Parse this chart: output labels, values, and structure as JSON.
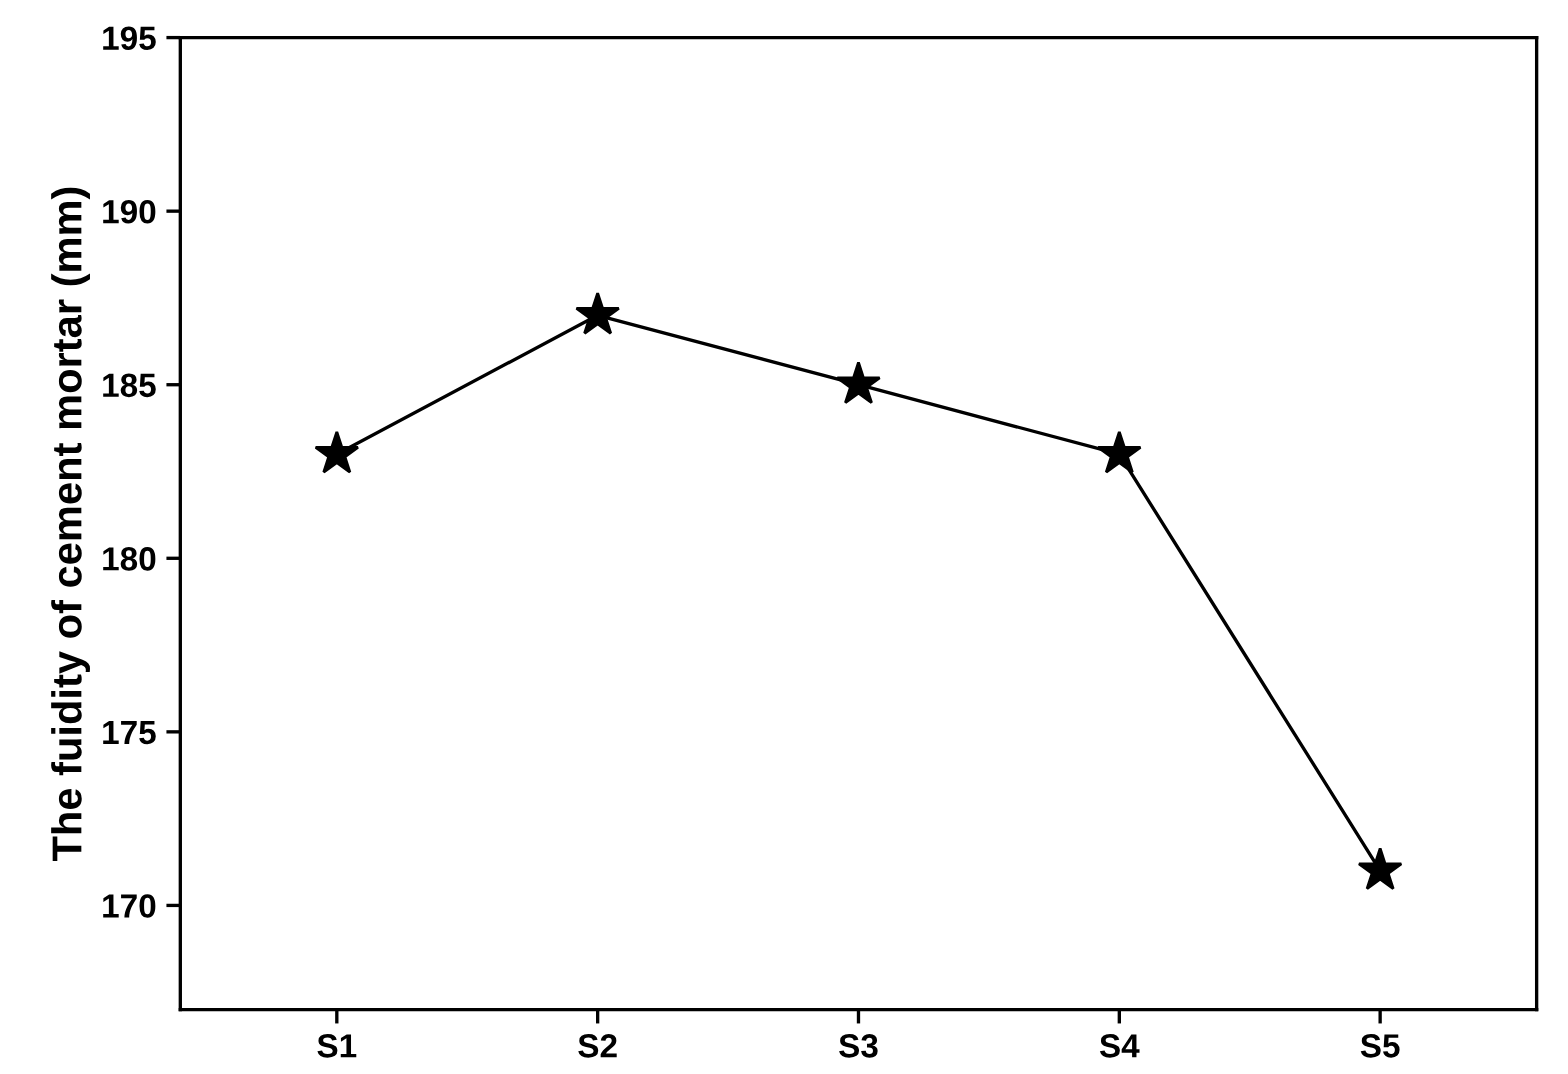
{
  "chart_data": {
    "type": "line",
    "ylabel": "The fuidity of cement mortar (mm)",
    "categories": [
      "S1",
      "S2",
      "S3",
      "S4",
      "S5"
    ],
    "series": [
      {
        "color": "#000000",
        "values": [
          183,
          187,
          185,
          183,
          171
        ]
      }
    ],
    "ylim": [
      167,
      195
    ],
    "yticks": [
      170,
      175,
      180,
      185,
      190,
      195
    ],
    "grid": false,
    "legend": false,
    "marker": "star",
    "line_style": "solid"
  }
}
